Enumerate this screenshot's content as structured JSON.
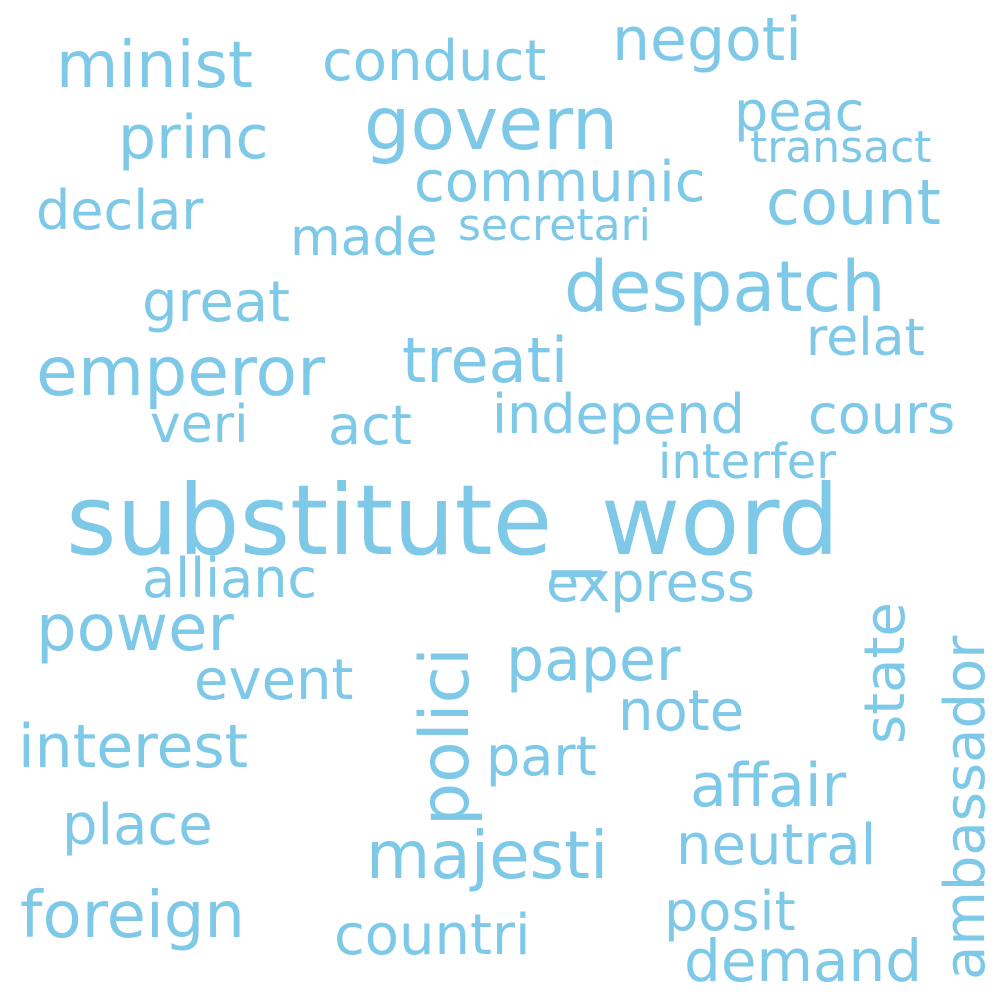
{
  "text_color": "#7ec8e8",
  "background_color": "#ffffff",
  "words": {
    "w1": "substitute_word",
    "w2": "govern",
    "w3": "despatch",
    "w4": "emperor",
    "w5": "minist",
    "w6": "conduct",
    "w7": "negoti",
    "w8": "power",
    "w9": "foreign",
    "w10": "majesti",
    "w11": "treati",
    "w12": "affair",
    "w13": "interest",
    "w14": "count",
    "w15": "princ",
    "w16": "communic",
    "w17": "declar",
    "w18": "great",
    "w19": "independ",
    "w20": "paper",
    "w21": "countri",
    "w22": "neutral",
    "w23": "demand",
    "w24": "place",
    "w25": "express",
    "w26": "allianc",
    "w27": "event",
    "w28": "posit",
    "w29": "part",
    "w30": "note",
    "w31": "cours",
    "w32": "made",
    "w33": "relat",
    "w34": "peac",
    "w35": "veri",
    "w36": "act",
    "w37": "interfer",
    "w38": "secretari",
    "w39": "transact",
    "w40": "polici",
    "w41": "state",
    "w42": "ambassador"
  }
}
